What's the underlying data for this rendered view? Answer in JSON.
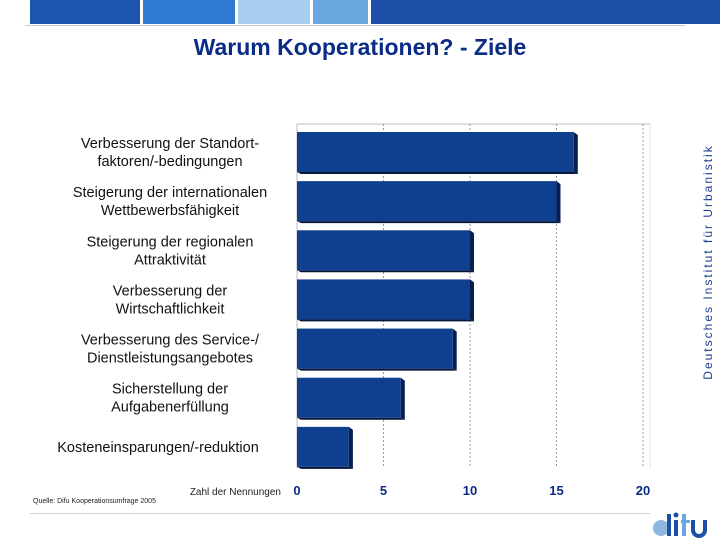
{
  "title": "Warum Kooperationen? - Ziele",
  "side_text": "Deutsches Institut für Urbanistik",
  "source": "Quelle: Difu Kooperationsumfrage 2005",
  "logo_text": "difu",
  "colors": {
    "bar": "#0f3f8f",
    "bar_side": "#071f4f",
    "title": "#0a2c86"
  },
  "chart_data": {
    "type": "bar",
    "orientation": "horizontal",
    "categories": [
      "Verbesserung der Standort-\nfaktoren/-bedingungen",
      "Steigerung der internationalen\nWettbewerbsfähigkeit",
      "Steigerung der regionalen\nAttraktivität",
      "Verbesserung der\nWirtschaftlichkeit",
      "Verbesserung des Service-/\nDienstleistungsangebotes",
      "Sicherstellung der\nAufgabenerfüllung",
      "Kosteneinsparungen/-reduktion"
    ],
    "values": [
      16,
      15,
      10,
      10,
      9,
      6,
      3
    ],
    "xlabel": "Zahl der Nennungen",
    "xlim": [
      0,
      20
    ],
    "xticks": [
      0,
      5,
      10,
      15,
      20
    ],
    "grid": "vertical dashed"
  }
}
